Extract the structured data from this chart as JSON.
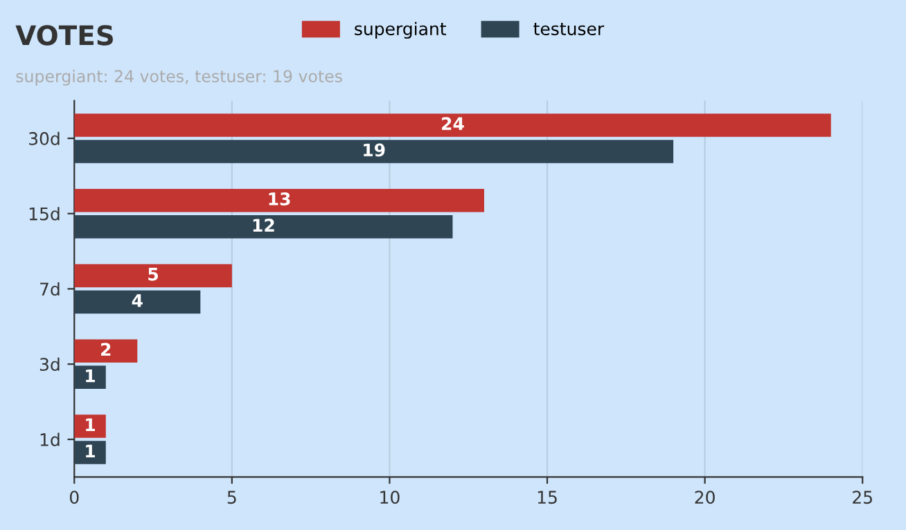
{
  "chart_data": {
    "type": "bar",
    "orientation": "horizontal",
    "title": "VOTES",
    "subtitle": "supergiant: 24 votes, testuser: 19 votes",
    "categories": [
      "30d",
      "15d",
      "7d",
      "3d",
      "1d"
    ],
    "series": [
      {
        "name": "supergiant",
        "color": "#c23531",
        "values": [
          24,
          13,
          5,
          2,
          1
        ]
      },
      {
        "name": "testuser",
        "color": "#2f4554",
        "values": [
          19,
          12,
          4,
          1,
          1
        ]
      }
    ],
    "xlim": [
      0,
      25
    ],
    "xticks": [
      0,
      5,
      10,
      15,
      20,
      25
    ],
    "grid": "x",
    "legend": "top",
    "data_labels": true
  }
}
